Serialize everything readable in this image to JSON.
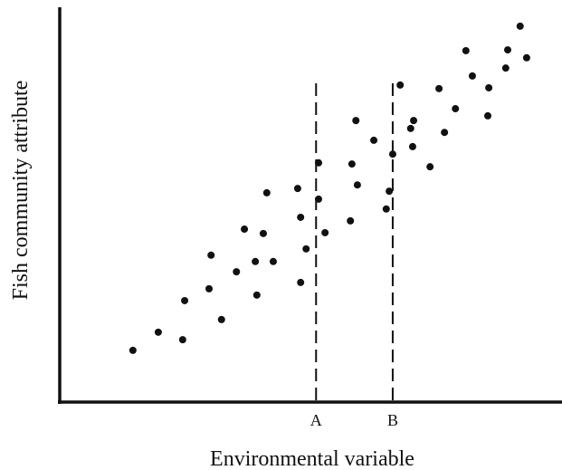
{
  "chart_data": {
    "type": "scatter",
    "x_label": "Environmental variable",
    "y_label": "Fish community attribute",
    "xlim": [
      0,
      100
    ],
    "ylim": [
      0,
      100
    ],
    "color": "#111111",
    "annotations": [
      {
        "text": "A",
        "x": 51.5
      },
      {
        "text": "B",
        "x": 66.9
      }
    ],
    "x": [
      14.7,
      19.8,
      24.7,
      25.1,
      32.5,
      30.0,
      30.4,
      35.5,
      39.6,
      39.3,
      42.9,
      37.1,
      40.9,
      41.6,
      48.4,
      49.5,
      48.4,
      47.8,
      52.0,
      53.3,
      52.0,
      58.4,
      58.7,
      59.8,
      65.6,
      66.2,
      66.9,
      59.5,
      63.1,
      68.4,
      70.9,
      70.5,
      71.1,
      74.4,
      77.3,
      76.2,
      79.5,
      82.9,
      86.0,
      86.2,
      81.6,
      89.6,
      90.0,
      92.5,
      93.8
    ],
    "y": [
      13.1,
      17.7,
      15.8,
      25.7,
      20.9,
      28.7,
      37.2,
      33.0,
      27.1,
      35.6,
      35.6,
      43.8,
      42.7,
      53.0,
      30.3,
      38.8,
      46.8,
      54.1,
      51.4,
      42.9,
      60.6,
      45.9,
      60.3,
      55.0,
      48.9,
      53.4,
      62.8,
      71.3,
      66.3,
      80.3,
      64.7,
      69.3,
      71.3,
      59.6,
      68.3,
      79.4,
      74.3,
      82.6,
      72.5,
      79.6,
      89.0,
      84.6,
      89.2,
      95.2,
      87.2
    ]
  }
}
